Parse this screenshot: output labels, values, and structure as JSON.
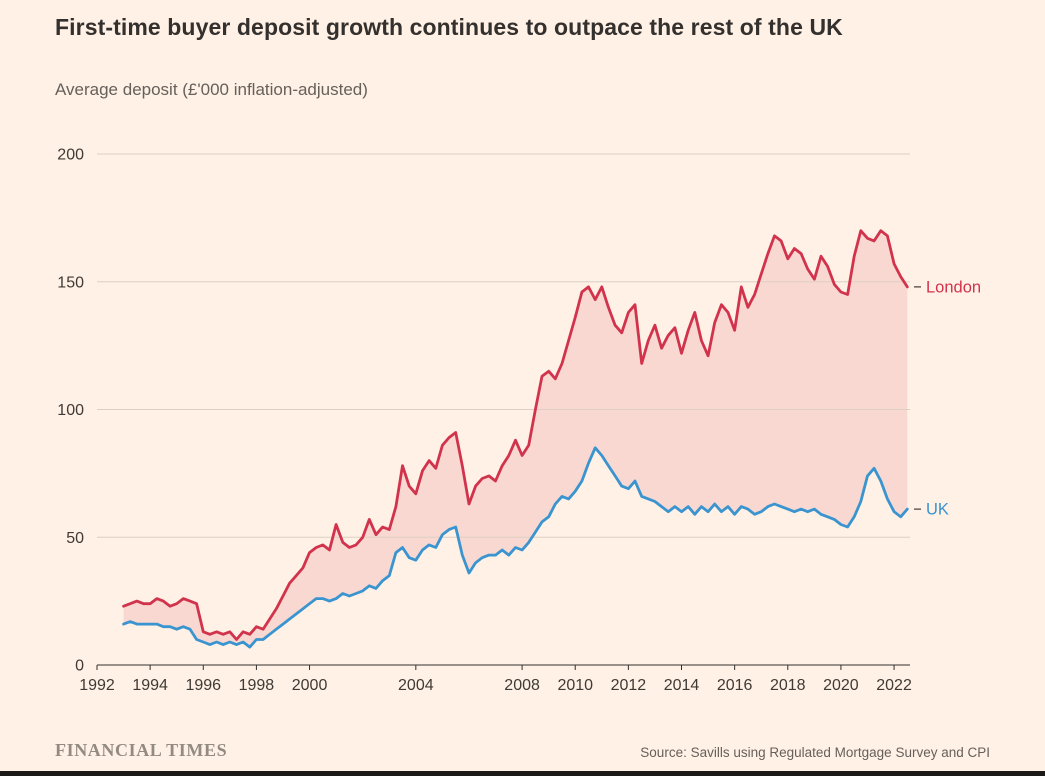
{
  "title": "First-time buyer deposit growth continues to outpace the rest of the UK",
  "subtitle": "Average deposit (£'000 inflation-adjusted)",
  "footer": {
    "brand": "FINANCIAL TIMES",
    "source": "Source: Savills using Regulated Mortgage Survey and CPI"
  },
  "colors": {
    "background": "#FFF1E5",
    "london": "#D2334C",
    "uk": "#3A94D0",
    "area_fill": "rgba(210,51,76,0.13)",
    "grid": "#DCD0C4",
    "axis": "#33302E",
    "tick_text": "#3F3A35",
    "muted_text": "#66605B"
  },
  "chart_data": {
    "type": "line",
    "title": "First-time buyer deposit growth continues to outpace the rest of the UK",
    "subtitle": "Average deposit (£'000 inflation-adjusted)",
    "xlabel": "",
    "ylabel": "Average deposit (£'000 inflation-adjusted)",
    "ylim": [
      0,
      200
    ],
    "yticks": [
      0,
      50,
      100,
      150,
      200
    ],
    "xlim": [
      1992,
      2022.6
    ],
    "xticks": [
      1992,
      1994,
      1996,
      1998,
      2000,
      2004,
      2008,
      2010,
      2012,
      2014,
      2016,
      2018,
      2020,
      2022
    ],
    "grid": true,
    "legend_position": "right-of-line-ends",
    "x_start": 1993.0,
    "x_step": 0.25,
    "x_unit": "year (quarterly)",
    "area_between_series": true,
    "series": [
      {
        "name": "London",
        "color": "#D2334C",
        "values": [
          23,
          24,
          25,
          24,
          24,
          26,
          25,
          23,
          24,
          26,
          25,
          24,
          13,
          12,
          13,
          12,
          13,
          10,
          13,
          12,
          15,
          14,
          18,
          22,
          27,
          32,
          35,
          38,
          44,
          46,
          47,
          45,
          55,
          48,
          46,
          47,
          50,
          57,
          51,
          54,
          53,
          62,
          78,
          70,
          67,
          76,
          80,
          77,
          86,
          89,
          91,
          78,
          63,
          70,
          73,
          74,
          72,
          78,
          82,
          88,
          82,
          86,
          100,
          113,
          115,
          112,
          118,
          127,
          136,
          146,
          148,
          143,
          148,
          140,
          133,
          130,
          138,
          141,
          118,
          127,
          133,
          124,
          129,
          132,
          122,
          131,
          138,
          127,
          121,
          134,
          141,
          138,
          131,
          148,
          140,
          145,
          153,
          161,
          168,
          166,
          159,
          163,
          161,
          155,
          151,
          160,
          156,
          149,
          146,
          145,
          160,
          170,
          167,
          166,
          170,
          168,
          157,
          152,
          148
        ]
      },
      {
        "name": "UK",
        "color": "#3A94D0",
        "values": [
          16,
          17,
          16,
          16,
          16,
          16,
          15,
          15,
          14,
          15,
          14,
          10,
          9,
          8,
          9,
          8,
          9,
          8,
          9,
          7,
          10,
          10,
          12,
          14,
          16,
          18,
          20,
          22,
          24,
          26,
          26,
          25,
          26,
          28,
          27,
          28,
          29,
          31,
          30,
          33,
          35,
          44,
          46,
          42,
          41,
          45,
          47,
          46,
          51,
          53,
          54,
          43,
          36,
          40,
          42,
          43,
          43,
          45,
          43,
          46,
          45,
          48,
          52,
          56,
          58,
          63,
          66,
          65,
          68,
          72,
          79,
          85,
          82,
          78,
          74,
          70,
          69,
          72,
          66,
          65,
          64,
          62,
          60,
          62,
          60,
          62,
          59,
          62,
          60,
          63,
          60,
          62,
          59,
          62,
          61,
          59,
          60,
          62,
          63,
          62,
          61,
          60,
          61,
          60,
          61,
          59,
          58,
          57,
          55,
          54,
          58,
          64,
          74,
          77,
          72,
          65,
          60,
          58,
          61
        ]
      }
    ]
  }
}
